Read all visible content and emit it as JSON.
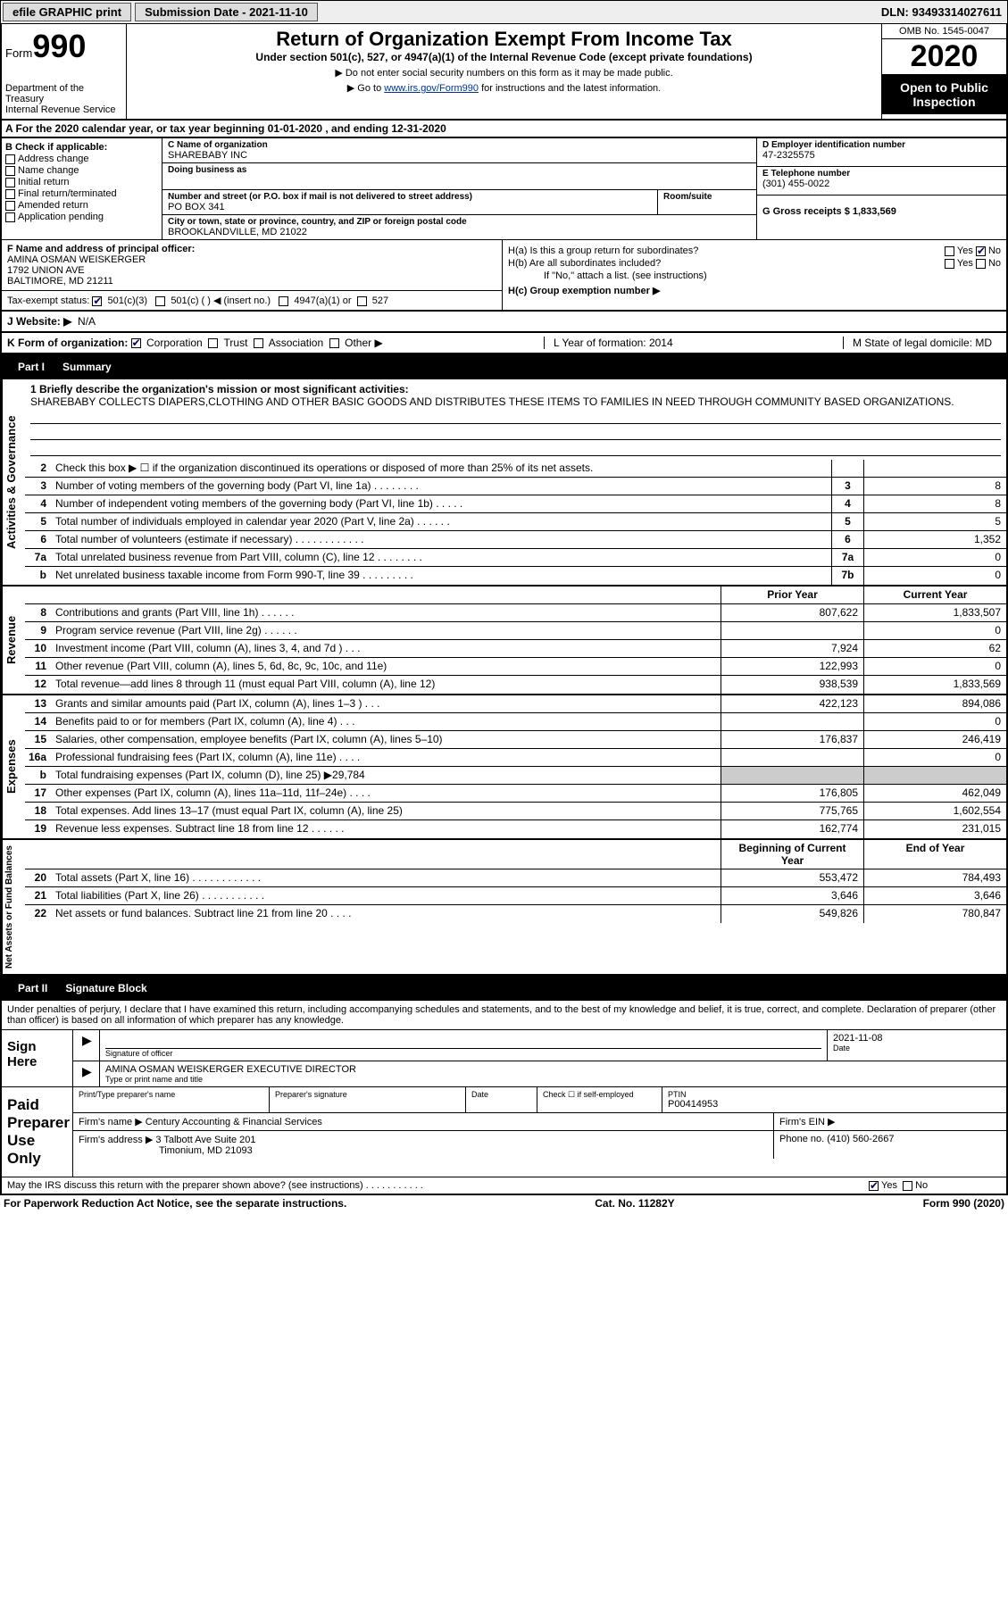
{
  "topbar": {
    "efile_label": "efile GRAPHIC print",
    "submission_date_label": "Submission Date - 2021-11-10",
    "dln_label": "DLN: 93493314027611"
  },
  "header": {
    "form_word": "Form",
    "form_number": "990",
    "dept": "Department of the Treasury",
    "irs": "Internal Revenue Service",
    "title": "Return of Organization Exempt From Income Tax",
    "subtitle": "Under section 501(c), 527, or 4947(a)(1) of the Internal Revenue Code (except private foundations)",
    "warn1": "▶ Do not enter social security numbers on this form as it may be made public.",
    "warn2_pre": "▶ Go to ",
    "warn2_link": "www.irs.gov/Form990",
    "warn2_post": " for instructions and the latest information.",
    "omb": "OMB No. 1545-0047",
    "year": "2020",
    "open_public": "Open to Public Inspection"
  },
  "rowA": "A   For the 2020 calendar year, or tax year beginning 01-01-2020   , and ending 12-31-2020",
  "colB": {
    "label": "B Check if applicable:",
    "items": [
      "Address change",
      "Name change",
      "Initial return",
      "Final return/terminated",
      "Amended return",
      "Application pending"
    ]
  },
  "colC": {
    "name_label": "C Name of organization",
    "name": "SHAREBABY INC",
    "dba_label": "Doing business as",
    "dba": "",
    "addr_label": "Number and street (or P.O. box if mail is not delivered to street address)",
    "room_label": "Room/suite",
    "addr": "PO BOX 341",
    "city_label": "City or town, state or province, country, and ZIP or foreign postal code",
    "city": "BROOKLANDVILLE, MD  21022"
  },
  "colDE": {
    "d_label": "D Employer identification number",
    "ein": "47-2325575",
    "e_label": "E Telephone number",
    "phone": "(301) 455-0022",
    "g_label": "G Gross receipts $ 1,833,569"
  },
  "colF": {
    "label": "F  Name and address of principal officer:",
    "name": "AMINA OSMAN WEISKERGER",
    "addr1": "1792 UNION AVE",
    "addr2": "BALTIMORE, MD  21211",
    "tax_status_label": "Tax-exempt status:",
    "status_501c3": "501(c)(3)",
    "status_501c": "501(c) (  ) ◀ (insert no.)",
    "status_4947": "4947(a)(1) or",
    "status_527": "527"
  },
  "colH": {
    "ha": "H(a)  Is this a group return for subordinates?",
    "hb": "H(b)  Are all subordinates included?",
    "hb_note": "If \"No,\" attach a list. (see instructions)",
    "hc": "H(c)  Group exemption number ▶",
    "yes": "Yes",
    "no": "No"
  },
  "website": {
    "label": "J   Website: ▶",
    "value": "N/A"
  },
  "rowK": {
    "k_label": "K Form of organization:",
    "corp": "Corporation",
    "trust": "Trust",
    "assoc": "Association",
    "other": "Other ▶",
    "l_label": "L Year of formation: 2014",
    "m_label": "M State of legal domicile: MD"
  },
  "part1": {
    "label": "Part I",
    "title": "Summary"
  },
  "mission": {
    "q": "1  Briefly describe the organization's mission or most significant activities:",
    "text": "SHAREBABY COLLECTS DIAPERS,CLOTHING AND OTHER BASIC GOODS AND DISTRIBUTES THESE ITEMS TO FAMILIES IN NEED THROUGH COMMUNITY BASED ORGANIZATIONS."
  },
  "governance": [
    {
      "n": "2",
      "d": "Check this box ▶ ☐  if the organization discontinued its operations or disposed of more than 25% of its net assets.",
      "b": "",
      "v": ""
    },
    {
      "n": "3",
      "d": "Number of voting members of the governing body (Part VI, line 1a)  .    .    .    .    .    .    .    .",
      "b": "3",
      "v": "8"
    },
    {
      "n": "4",
      "d": "Number of independent voting members of the governing body (Part VI, line 1b)  .    .    .    .    .",
      "b": "4",
      "v": "8"
    },
    {
      "n": "5",
      "d": "Total number of individuals employed in calendar year 2020 (Part V, line 2a)  .    .    .    .    .    .",
      "b": "5",
      "v": "5"
    },
    {
      "n": "6",
      "d": "Total number of volunteers (estimate if necessary)  .    .    .    .    .    .    .    .    .    .    .    .",
      "b": "6",
      "v": "1,352"
    },
    {
      "n": "7a",
      "d": "Total unrelated business revenue from Part VIII, column (C), line 12  .    .    .    .    .    .    .    .",
      "b": "7a",
      "v": "0"
    },
    {
      "n": "b",
      "d": "Net unrelated business taxable income from Form 990-T, line 39  .    .    .    .    .    .    .    .    .",
      "b": "7b",
      "v": "0"
    }
  ],
  "two_col_header": {
    "prior": "Prior Year",
    "current": "Current Year"
  },
  "revenue": [
    {
      "n": "8",
      "d": "Contributions and grants (Part VIII, line 1h)  .    .    .    .    .    .",
      "p": "807,622",
      "c": "1,833,507"
    },
    {
      "n": "9",
      "d": "Program service revenue (Part VIII, line 2g)  .    .    .    .    .    .",
      "p": "",
      "c": "0"
    },
    {
      "n": "10",
      "d": "Investment income (Part VIII, column (A), lines 3, 4, and 7d )  .    .    .",
      "p": "7,924",
      "c": "62"
    },
    {
      "n": "11",
      "d": "Other revenue (Part VIII, column (A), lines 5, 6d, 8c, 9c, 10c, and 11e)",
      "p": "122,993",
      "c": "0"
    },
    {
      "n": "12",
      "d": "Total revenue—add lines 8 through 11 (must equal Part VIII, column (A), line 12)",
      "p": "938,539",
      "c": "1,833,569"
    }
  ],
  "expenses": [
    {
      "n": "13",
      "d": "Grants and similar amounts paid (Part IX, column (A), lines 1–3 )  .    .    .",
      "p": "422,123",
      "c": "894,086"
    },
    {
      "n": "14",
      "d": "Benefits paid to or for members (Part IX, column (A), line 4)  .    .    .",
      "p": "",
      "c": "0"
    },
    {
      "n": "15",
      "d": "Salaries, other compensation, employee benefits (Part IX, column (A), lines 5–10)",
      "p": "176,837",
      "c": "246,419"
    },
    {
      "n": "16a",
      "d": "Professional fundraising fees (Part IX, column (A), line 11e)  .    .    .    .",
      "p": "",
      "c": "0"
    },
    {
      "n": "b",
      "d": "Total fundraising expenses (Part IX, column (D), line 25) ▶29,784",
      "p": "shade",
      "c": "shade"
    },
    {
      "n": "17",
      "d": "Other expenses (Part IX, column (A), lines 11a–11d, 11f–24e)  .    .    .    .",
      "p": "176,805",
      "c": "462,049"
    },
    {
      "n": "18",
      "d": "Total expenses. Add lines 13–17 (must equal Part IX, column (A), line 25)",
      "p": "775,765",
      "c": "1,602,554"
    },
    {
      "n": "19",
      "d": "Revenue less expenses. Subtract line 18 from line 12  .    .    .    .    .    .",
      "p": "162,774",
      "c": "231,015"
    }
  ],
  "netassets_header": {
    "begin": "Beginning of Current Year",
    "end": "End of Year"
  },
  "netassets": [
    {
      "n": "20",
      "d": "Total assets (Part X, line 16)  .    .    .    .    .    .    .    .    .    .    .    .",
      "p": "553,472",
      "c": "784,493"
    },
    {
      "n": "21",
      "d": "Total liabilities (Part X, line 26)  .    .    .    .    .    .    .    .    .    .    .",
      "p": "3,646",
      "c": "3,646"
    },
    {
      "n": "22",
      "d": "Net assets or fund balances. Subtract line 21 from line 20  .    .    .    .",
      "p": "549,826",
      "c": "780,847"
    }
  ],
  "side_tabs": {
    "gov": "Activities & Governance",
    "rev": "Revenue",
    "exp": "Expenses",
    "net": "Net Assets or Fund Balances"
  },
  "part2": {
    "label": "Part II",
    "title": "Signature Block"
  },
  "sig_decl": "Under penalties of perjury, I declare that I have examined this return, including accompanying schedules and statements, and to the best of my knowledge and belief, it is true, correct, and complete. Declaration of preparer (other than officer) is based on all information of which preparer has any knowledge.",
  "sign_here": {
    "label": "Sign Here",
    "sig_of_officer": "Signature of officer",
    "date_label": "Date",
    "date": "2021-11-08",
    "name_title": "AMINA OSMAN WEISKERGER  EXECUTIVE DIRECTOR",
    "type_label": "Type or print name and title"
  },
  "paid_prep": {
    "label": "Paid Preparer Use Only",
    "print_name_label": "Print/Type preparer's name",
    "prep_sig_label": "Preparer's signature",
    "date_label": "Date",
    "check_if": "Check ☐ if self-employed",
    "ptin_label": "PTIN",
    "ptin": "P00414953",
    "firm_name_label": "Firm's name   ▶",
    "firm_name": "Century Accounting & Financial Services",
    "firm_ein_label": "Firm's EIN ▶",
    "firm_addr_label": "Firm's address ▶",
    "firm_addr1": "3 Talbott Ave Suite 201",
    "firm_addr2": "Timonium, MD  21093",
    "phone_label": "Phone no. (410) 560-2667"
  },
  "discuss": {
    "q": "May the IRS discuss this return with the preparer shown above? (see instructions)  .    .    .    .    .    .    .    .    .    .    .",
    "yes": "Yes",
    "no": "No"
  },
  "footer": {
    "left": "For Paperwork Reduction Act Notice, see the separate instructions.",
    "mid": "Cat. No. 11282Y",
    "right": "Form 990 (2020)"
  }
}
